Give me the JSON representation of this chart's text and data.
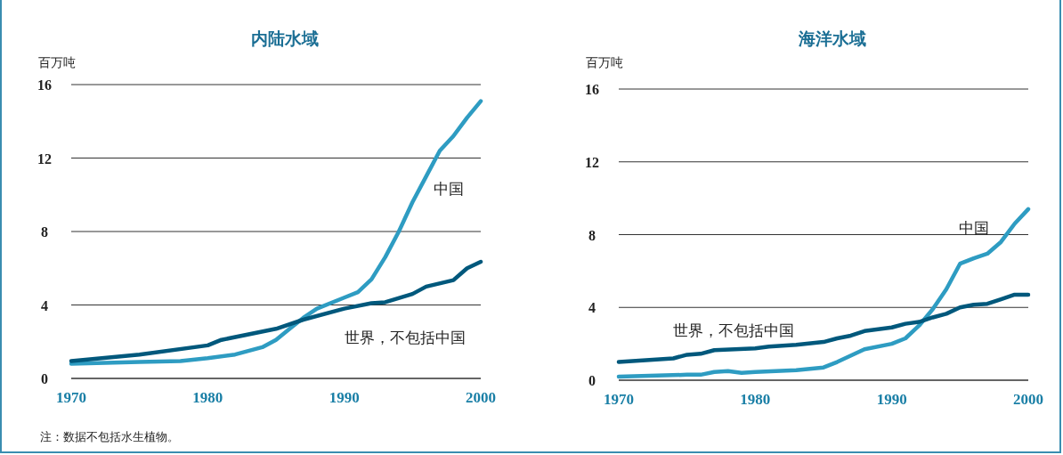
{
  "chart_data": [
    {
      "type": "line",
      "title": "内陆水域",
      "ylabel": "百万吨",
      "x": [
        1970,
        1975,
        1978,
        1980,
        1982,
        1984,
        1985,
        1986,
        1987,
        1988,
        1990,
        1991,
        1992,
        1993,
        1994,
        1995,
        1996,
        1997,
        1998,
        1999,
        2000
      ],
      "xlim": [
        1970,
        2000
      ],
      "xticks": [
        1970,
        1980,
        1990,
        2000
      ],
      "ylim": [
        0,
        16
      ],
      "yticks": [
        0,
        4,
        8,
        12,
        16
      ],
      "grid": "y",
      "series": [
        {
          "name": "中国",
          "color": "#2e9cc2",
          "values": [
            0.8,
            0.9,
            0.95,
            1.1,
            1.3,
            1.7,
            2.1,
            2.7,
            3.3,
            3.8,
            4.4,
            4.7,
            5.4,
            6.6,
            8.0,
            9.6,
            11.0,
            12.4,
            13.2,
            14.2,
            15.1
          ]
        },
        {
          "name": "世界，不包括中国",
          "color": "#00587c",
          "x": [
            1970,
            1975,
            1980,
            1981,
            1985,
            1987,
            1990,
            1992,
            1993,
            1995,
            1996,
            1998,
            1999,
            2000
          ],
          "values": [
            0.95,
            1.3,
            1.8,
            2.1,
            2.7,
            3.2,
            3.8,
            4.1,
            4.15,
            4.6,
            5.0,
            5.35,
            6.0,
            6.35
          ]
        }
      ],
      "annotations": [
        "注：数据不包括水生植物。"
      ]
    },
    {
      "type": "line",
      "title": "海洋水域",
      "ylabel": "百万吨",
      "x": [
        1970,
        1975,
        1976,
        1977,
        1978,
        1979,
        1980,
        1983,
        1985,
        1986,
        1988,
        1990,
        1991,
        1992,
        1993,
        1994,
        1995,
        1996,
        1997,
        1998,
        1999,
        2000
      ],
      "xlim": [
        1970,
        2000
      ],
      "xticks": [
        1970,
        1980,
        1990,
        2000
      ],
      "ylim": [
        0,
        16
      ],
      "yticks": [
        0,
        4,
        8,
        12,
        16
      ],
      "grid": "y",
      "series": [
        {
          "name": "中国",
          "color": "#2e9cc2",
          "values": [
            0.2,
            0.3,
            0.3,
            0.45,
            0.5,
            0.4,
            0.45,
            0.55,
            0.7,
            1.0,
            1.7,
            2.0,
            2.3,
            3.0,
            3.9,
            5.0,
            6.4,
            6.7,
            6.95,
            7.6,
            8.6,
            9.4
          ]
        },
        {
          "name": "世界，不包括中国",
          "color": "#00587c",
          "x": [
            1970,
            1972,
            1974,
            1975,
            1976,
            1977,
            1980,
            1981,
            1983,
            1985,
            1986,
            1987,
            1988,
            1990,
            1991,
            1992,
            1993,
            1994,
            1995,
            1996,
            1997,
            1998,
            1999,
            2000
          ],
          "values": [
            1.0,
            1.1,
            1.2,
            1.4,
            1.45,
            1.65,
            1.75,
            1.85,
            1.95,
            2.1,
            2.3,
            2.45,
            2.7,
            2.9,
            3.1,
            3.2,
            3.45,
            3.65,
            4.0,
            4.15,
            4.2,
            4.45,
            4.7,
            4.7
          ]
        }
      ]
    }
  ]
}
